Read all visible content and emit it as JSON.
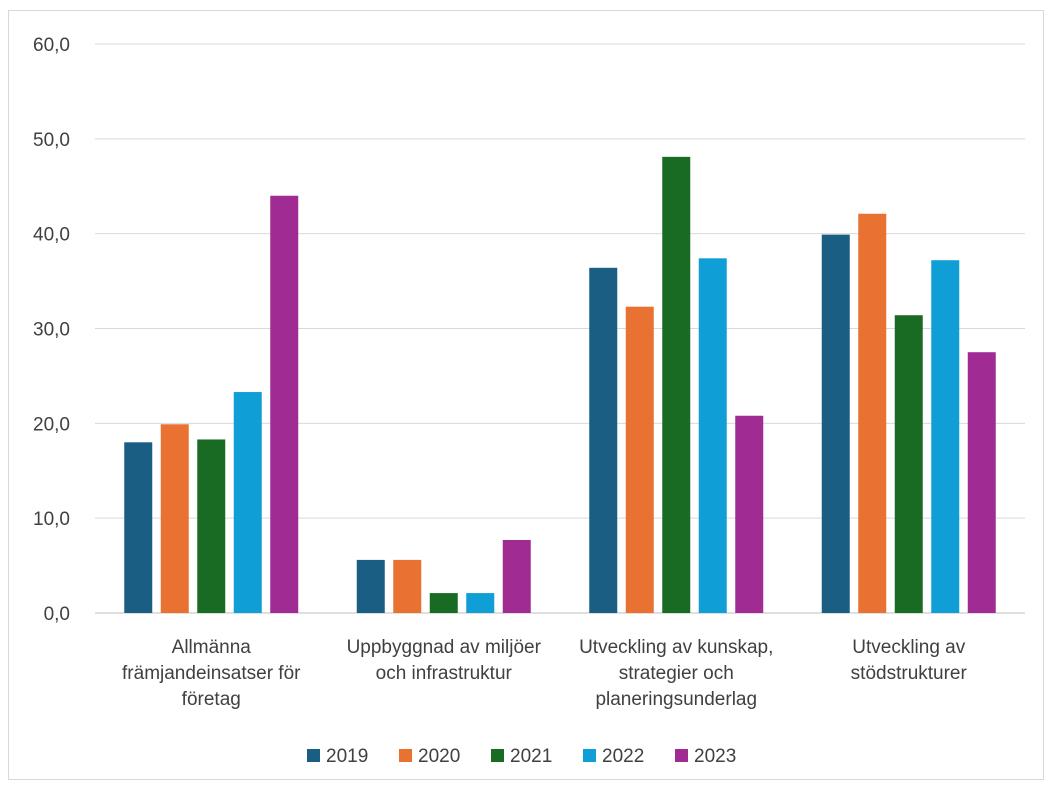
{
  "chart_data": {
    "type": "bar",
    "title": "",
    "xlabel": "",
    "ylabel": "",
    "ylim": [
      0,
      60
    ],
    "yticks": [
      "0,0",
      "10,0",
      "20,0",
      "30,0",
      "40,0",
      "50,0",
      "60,0"
    ],
    "grid": true,
    "legend_position": "bottom",
    "categories": [
      [
        "Allmänna",
        "främjandeinsatser för",
        "företag"
      ],
      [
        "Uppbyggnad av miljöer",
        "och infrastruktur"
      ],
      [
        "Utveckling av kunskap,",
        "strategier och",
        "planeringsunderlag"
      ],
      [
        "Utveckling av",
        "stödstrukturer"
      ]
    ],
    "series": [
      {
        "name": "2019",
        "color": "#1b5e84",
        "values": [
          18.0,
          5.6,
          36.4,
          39.9
        ]
      },
      {
        "name": "2020",
        "color": "#e97132",
        "values": [
          19.9,
          5.6,
          32.3,
          42.1
        ]
      },
      {
        "name": "2021",
        "color": "#196b24",
        "values": [
          18.3,
          2.1,
          48.1,
          31.4
        ]
      },
      {
        "name": "2022",
        "color": "#0f9ed5",
        "values": [
          23.3,
          2.1,
          37.4,
          37.2
        ]
      },
      {
        "name": "2023",
        "color": "#a02b93",
        "values": [
          44.0,
          7.7,
          20.8,
          27.5
        ]
      }
    ]
  }
}
